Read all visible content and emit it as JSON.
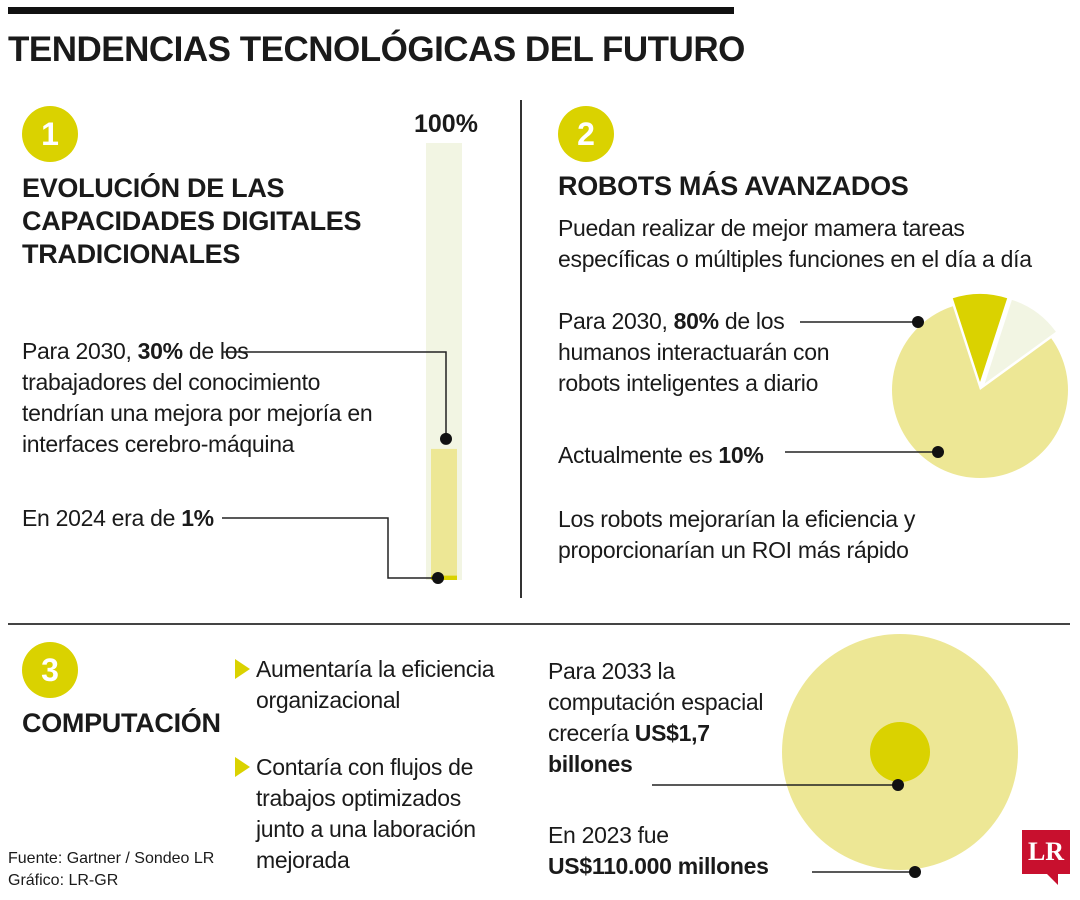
{
  "title": "TENDENCIAS TECNOLÓGICAS DEL FUTURO",
  "colors": {
    "accent": "#dad200",
    "light": "#ede795",
    "pale": "#f2f5e3",
    "dark": "#111111",
    "logo": "#c8102e"
  },
  "section1": {
    "number": "1",
    "heading_lines": [
      "EVOLUCIÓN DE LAS",
      "CAPACIDADES DIGITALES",
      "TRADICIONALES"
    ],
    "text1": {
      "pre": "Para 2030, ",
      "bold": "30%",
      "post": " de los",
      "lines": [
        "trabajadores del conocimiento",
        "tendrían una mejora por mejoría en",
        "interfaces cerebro-máquina"
      ]
    },
    "text2": {
      "pre": "En 2024 era de ",
      "bold": "1%"
    }
  },
  "section2": {
    "number": "2",
    "heading": "ROBOTS MÁS AVANZADOS",
    "subtitle_lines": [
      "Puedan realizar de mejor mamera tareas",
      "específicas o múltiples funciones en el día a día"
    ],
    "text1": {
      "pre": "Para 2030, ",
      "bold": "80%",
      "post": " de los",
      "lines": [
        "humanos interactuarán con",
        "robots inteligentes a diario"
      ]
    },
    "text2": {
      "pre": "Actualmente es ",
      "bold": "10%"
    },
    "text3_lines": [
      "Los robots mejorarían la eficiencia y",
      "proporcionarían un ROI más rápido"
    ]
  },
  "section3": {
    "number": "3",
    "heading": "COMPUTACIÓN",
    "bullets": [
      {
        "lines": [
          "Aumentaría la eficiencia",
          "organizacional"
        ]
      },
      {
        "lines": [
          "Contaría con flujos de",
          "trabajos optimizados",
          "junto a una laboración",
          "mejorada"
        ]
      }
    ],
    "text1": {
      "lines": [
        "Para 2033 la",
        "computación espacial"
      ],
      "pre": "crecería ",
      "bold": "US$1,7",
      "bold2": "billones"
    },
    "text2": {
      "line": "En 2023 fue",
      "bold": "US$110.000 millones"
    }
  },
  "footer": {
    "source": "Fuente: Gartner / Sondeo LR",
    "graphic": "Gráfico: LR-GR"
  },
  "logo": "LR",
  "chart_data": [
    {
      "type": "bar",
      "categories": [
        "2024",
        "2030"
      ],
      "values": [
        1,
        30
      ],
      "value_labels": [
        "1%",
        "30%"
      ],
      "max_label": "100%",
      "ylim": [
        0,
        100
      ],
      "unit": "%"
    },
    {
      "type": "pie",
      "slices": [
        {
          "label": "Para 2030",
          "value": 80,
          "color": "#ede795"
        },
        {
          "label": "Actualmente",
          "value": 10,
          "color": "#dad200"
        },
        {
          "label": "",
          "value": 10,
          "color": "#f2f5e3"
        }
      ],
      "unit": "%"
    },
    {
      "type": "area",
      "shape": "circle",
      "items": [
        {
          "label": "2033",
          "value": 1700000,
          "value_label": "US$1,7 billones",
          "color": "#ede795"
        },
        {
          "label": "2023",
          "value": 110000,
          "value_label": "US$110.000 millones",
          "color": "#dad200"
        }
      ],
      "unit": "US$ millones"
    }
  ]
}
